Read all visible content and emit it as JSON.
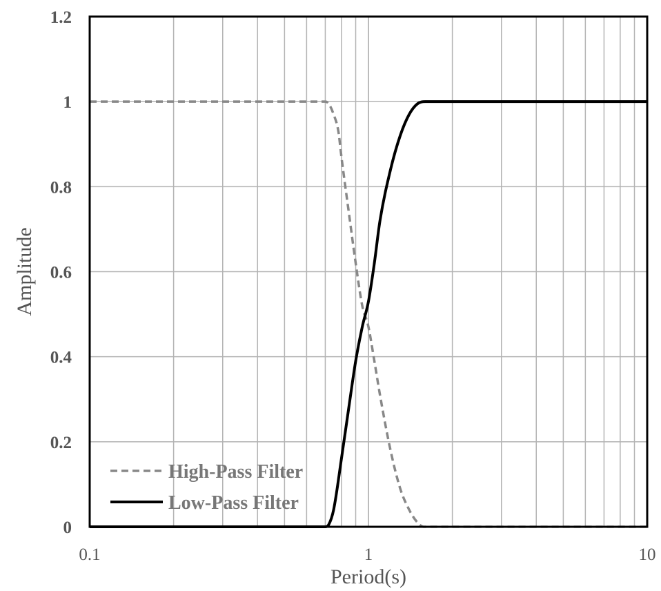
{
  "chart_data": {
    "type": "line",
    "xscale": "log",
    "xlim": [
      0.1,
      10
    ],
    "ylim": [
      0,
      1.2
    ],
    "xlabel": "Period(s)",
    "ylabel": "Amplitude",
    "grid": true,
    "legend_position": "bottom-left",
    "x_ticks": [
      "0.1",
      "1",
      "10"
    ],
    "y_ticks": [
      "0",
      "0.2",
      "0.4",
      "0.6",
      "0.8",
      "1",
      "1.2"
    ],
    "series": [
      {
        "name": "High-Pass Filter",
        "style": "dashed",
        "color": "#888888",
        "x": [
          0.1,
          0.7,
          0.72,
          0.75,
          0.78,
          0.8,
          0.85,
          0.9,
          0.95,
          1.0,
          1.05,
          1.1,
          1.2,
          1.3,
          1.4,
          1.5,
          1.58,
          2,
          5,
          10
        ],
        "y": [
          1.0,
          1.0,
          0.995,
          0.97,
          0.93,
          0.87,
          0.74,
          0.62,
          0.52,
          0.47,
          0.39,
          0.31,
          0.18,
          0.09,
          0.04,
          0.01,
          0.0,
          0.0,
          0.0,
          0.0
        ]
      },
      {
        "name": "Low-Pass Filter",
        "style": "solid",
        "color": "#000000",
        "x": [
          0.1,
          0.7,
          0.72,
          0.75,
          0.8,
          0.85,
          0.9,
          0.95,
          1.0,
          1.05,
          1.1,
          1.2,
          1.3,
          1.4,
          1.5,
          1.6,
          1.7,
          2,
          5,
          10
        ],
        "y": [
          0.0,
          0.0,
          0.005,
          0.04,
          0.16,
          0.28,
          0.39,
          0.47,
          0.53,
          0.62,
          0.72,
          0.84,
          0.92,
          0.97,
          0.995,
          1.0,
          1.0,
          1.0,
          1.0,
          1.0
        ]
      }
    ]
  }
}
